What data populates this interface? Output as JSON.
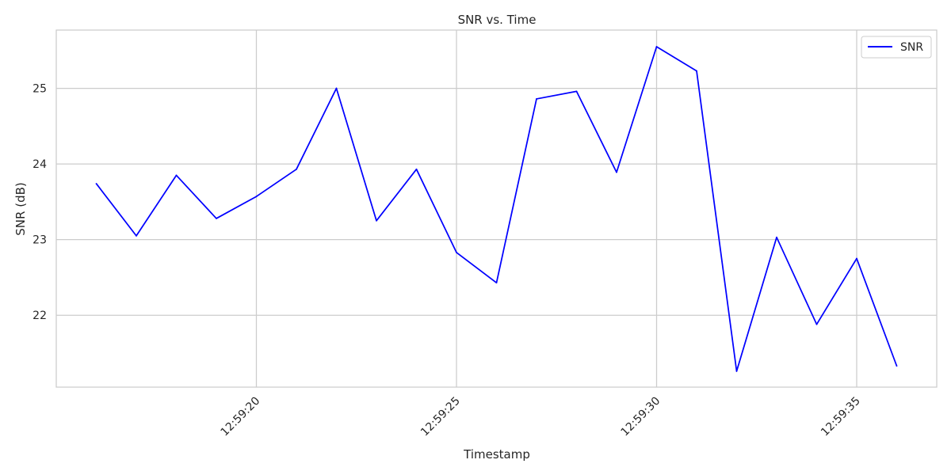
{
  "chart_data": {
    "type": "line",
    "title": "SNR vs. Time",
    "xlabel": "Timestamp",
    "ylabel": "SNR (dB)",
    "x": [
      "12:59:16",
      "12:59:17",
      "12:59:18",
      "12:59:19",
      "12:59:20",
      "12:59:21",
      "12:59:22",
      "12:59:23",
      "12:59:24",
      "12:59:25",
      "12:59:26",
      "12:59:27",
      "12:59:28",
      "12:59:29",
      "12:59:30",
      "12:59:31",
      "12:59:32",
      "12:59:33",
      "12:59:34",
      "12:59:35",
      "12:59:36"
    ],
    "series": [
      {
        "name": "SNR",
        "color": "#0000ff",
        "values": [
          23.74,
          23.05,
          23.85,
          23.28,
          23.57,
          23.93,
          25.0,
          23.25,
          23.93,
          22.83,
          22.43,
          24.86,
          24.96,
          23.89,
          25.55,
          25.23,
          21.26,
          23.03,
          21.88,
          22.75,
          21.33
        ]
      }
    ],
    "xticks": [
      "12:59:20",
      "12:59:25",
      "12:59:30",
      "12:59:35"
    ],
    "yticks": [
      22,
      23,
      24,
      25
    ],
    "ylim": [
      21.05,
      25.77
    ],
    "xlim": [
      "12:59:15",
      "12:59:37"
    ],
    "grid": true,
    "legend_position": "top-right"
  }
}
